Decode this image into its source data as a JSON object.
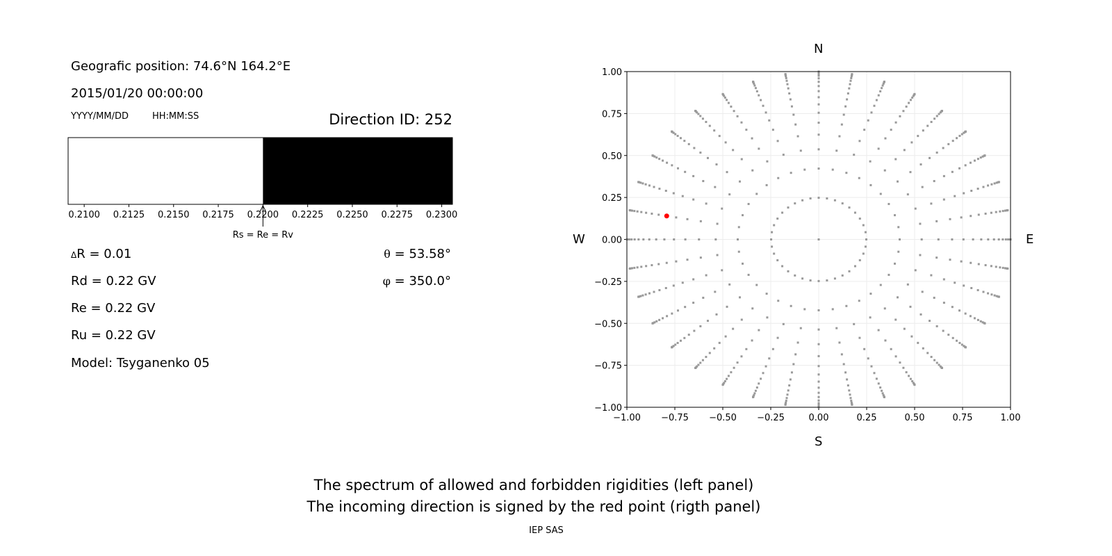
{
  "left_panel": {
    "position": "Geografic position: 74.6°N 164.2°E",
    "datetime": "2015/01/20 00:00:00",
    "date_format": "YYYY/MM/DD",
    "time_format": "HH:MM:SS",
    "direction_id": "Direction ID: 252",
    "delta_r_symbol": "Δ",
    "delta_r": "R = 0.01",
    "rd": "Rd = 0.22 GV",
    "re": "Re = 0.22 GV",
    "ru": "Ru = 0.22 GV",
    "model": "Model: Tsyganenko 05",
    "theta_symbol": "θ",
    "theta": " = 53.58°",
    "phi_symbol": "φ",
    "phi": " = 350.0°"
  },
  "footer": {
    "line1": "The spectrum of allowed and forbidden rigidities (left panel)",
    "line2": "The incoming direction is signed by the red point (rigth panel)",
    "credit": "IEP SAS"
  },
  "chart_data": [
    {
      "type": "bar",
      "description_role": "rigidity spectrum",
      "xlim": [
        0.2091,
        0.2306
      ],
      "xticks": [
        "0.2100",
        "0.2125",
        "0.2150",
        "0.2175",
        "0.2200",
        "0.2225",
        "0.2250",
        "0.2275",
        "0.2300"
      ],
      "segments": [
        {
          "from": 0.2091,
          "to": 0.22,
          "state": "allowed",
          "color": "#ffffff"
        },
        {
          "from": 0.22,
          "to": 0.2306,
          "state": "forbidden",
          "color": "#000000"
        }
      ],
      "annotation": {
        "text": "Rs = Re = Rv",
        "x": 0.22
      }
    },
    {
      "type": "scatter",
      "xlim": [
        -1,
        1
      ],
      "ylim": [
        -1,
        1
      ],
      "grid": true,
      "xticks": [
        "−1.00",
        "−0.75",
        "−0.50",
        "−0.25",
        "0.00",
        "0.25",
        "0.50",
        "0.75",
        "1.00"
      ],
      "yticks": [
        "−1.00",
        "−0.75",
        "−0.50",
        "−0.25",
        "0.00",
        "0.25",
        "0.50",
        "0.75",
        "1.00"
      ],
      "compass": {
        "north": "N",
        "south": "S",
        "west": "W",
        "east": "E"
      },
      "grid_directions": {
        "phi_deg_step": 10,
        "theta_deg": [
          0,
          14.36,
          24.97,
          32.47,
          38.62,
          44.05,
          48.99,
          53.58,
          57.91,
          62.05,
          66.03,
          69.89,
          73.67,
          77.36,
          81.01,
          84.62,
          88.21,
          90
        ],
        "color": "#999999"
      },
      "highlight": {
        "theta_deg": 53.58,
        "phi_deg": 350.0,
        "x": -0.79,
        "y": 0.14,
        "color": "#ff0000"
      }
    }
  ]
}
